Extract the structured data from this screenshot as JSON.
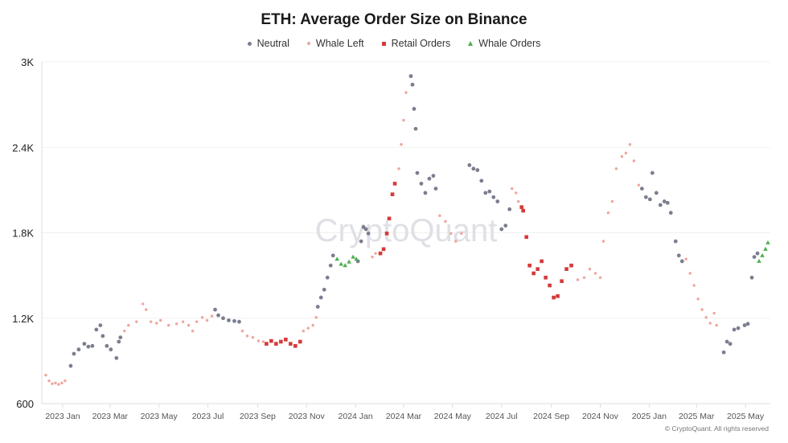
{
  "chart_data": {
    "type": "scatter",
    "title": "ETH: Average Order Size on Binance",
    "xlabel": "",
    "ylabel": "",
    "xlim": [
      "2022-12-06",
      "2025-06-01"
    ],
    "ylim": [
      600,
      3000
    ],
    "grid": true,
    "legend_placement": "top-center",
    "y_ticks": [
      600,
      1200,
      1800,
      2400,
      3000
    ],
    "y_tick_labels": [
      "600",
      "1.2K",
      "1.8K",
      "2.4K",
      "3K"
    ],
    "x_ticks": [
      "2023-01-01",
      "2023-03-01",
      "2023-05-01",
      "2023-07-01",
      "2023-09-01",
      "2023-11-01",
      "2024-01-01",
      "2024-03-01",
      "2024-05-01",
      "2024-07-01",
      "2024-09-01",
      "2024-11-01",
      "2025-01-01",
      "2025-03-01",
      "2025-05-01"
    ],
    "x_tick_labels": [
      "2023 Jan",
      "2023 Mar",
      "2023 May",
      "2023 Jul",
      "2023 Sep",
      "2023 Nov",
      "2024 Jan",
      "2024 Mar",
      "2024 May",
      "2024 Jul",
      "2024 Sep",
      "2024 Nov",
      "2025 Jan",
      "2025 Mar",
      "2025 May"
    ],
    "watermark": "CryptoQuant",
    "series": [
      {
        "name": "Neutral",
        "marker": "circle",
        "color": "#7b7e8e",
        "points": [
          [
            "2023-01-11",
            865
          ],
          [
            "2023-01-15",
            950
          ],
          [
            "2023-01-21",
            980
          ],
          [
            "2023-01-28",
            1020
          ],
          [
            "2023-02-02",
            1000
          ],
          [
            "2023-02-07",
            1005
          ],
          [
            "2023-02-12",
            1120
          ],
          [
            "2023-02-17",
            1150
          ],
          [
            "2023-02-20",
            1075
          ],
          [
            "2023-02-25",
            1005
          ],
          [
            "2023-03-02",
            980
          ],
          [
            "2023-03-09",
            920
          ],
          [
            "2023-03-12",
            1035
          ],
          [
            "2023-03-14",
            1065
          ],
          [
            "2023-07-10",
            1260
          ],
          [
            "2023-07-14",
            1220
          ],
          [
            "2023-07-20",
            1200
          ],
          [
            "2023-07-27",
            1185
          ],
          [
            "2023-08-03",
            1180
          ],
          [
            "2023-08-09",
            1175
          ],
          [
            "2023-11-15",
            1280
          ],
          [
            "2023-11-19",
            1345
          ],
          [
            "2023-11-23",
            1400
          ],
          [
            "2023-11-27",
            1485
          ],
          [
            "2023-12-01",
            1570
          ],
          [
            "2023-12-04",
            1640
          ],
          [
            "2024-01-04",
            1600
          ],
          [
            "2024-01-08",
            1740
          ],
          [
            "2024-01-11",
            1840
          ],
          [
            "2024-01-14",
            1825
          ],
          [
            "2024-01-17",
            1795
          ],
          [
            "2024-03-10",
            2900
          ],
          [
            "2024-03-12",
            2840
          ],
          [
            "2024-03-14",
            2670
          ],
          [
            "2024-03-16",
            2530
          ],
          [
            "2024-03-18",
            2220
          ],
          [
            "2024-03-23",
            2145
          ],
          [
            "2024-03-28",
            2080
          ],
          [
            "2024-04-02",
            2180
          ],
          [
            "2024-04-07",
            2200
          ],
          [
            "2024-04-10",
            2110
          ],
          [
            "2024-05-22",
            2275
          ],
          [
            "2024-05-27",
            2250
          ],
          [
            "2024-06-01",
            2240
          ],
          [
            "2024-06-06",
            2165
          ],
          [
            "2024-06-11",
            2080
          ],
          [
            "2024-06-16",
            2090
          ],
          [
            "2024-06-21",
            2050
          ],
          [
            "2024-06-26",
            2020
          ],
          [
            "2024-07-01",
            1825
          ],
          [
            "2024-07-06",
            1850
          ],
          [
            "2024-07-11",
            1965
          ],
          [
            "2024-12-23",
            2110
          ],
          [
            "2024-12-28",
            2050
          ],
          [
            "2025-01-02",
            2035
          ],
          [
            "2025-01-05",
            2220
          ],
          [
            "2025-01-10",
            2080
          ],
          [
            "2025-01-15",
            1995
          ],
          [
            "2025-01-20",
            2020
          ],
          [
            "2025-01-24",
            2010
          ],
          [
            "2025-01-28",
            1940
          ],
          [
            "2025-02-03",
            1740
          ],
          [
            "2025-02-07",
            1640
          ],
          [
            "2025-02-11",
            1600
          ],
          [
            "2025-04-04",
            960
          ],
          [
            "2025-04-08",
            1035
          ],
          [
            "2025-04-12",
            1020
          ],
          [
            "2025-04-17",
            1120
          ],
          [
            "2025-04-22",
            1130
          ],
          [
            "2025-04-30",
            1150
          ],
          [
            "2025-05-04",
            1160
          ],
          [
            "2025-05-09",
            1485
          ],
          [
            "2025-05-12",
            1630
          ],
          [
            "2025-05-16",
            1655
          ]
        ]
      },
      {
        "name": "Whale Left",
        "marker": "circle-small",
        "color": "#eea59c",
        "points": [
          [
            "2022-12-11",
            800
          ],
          [
            "2022-12-15",
            760
          ],
          [
            "2022-12-19",
            740
          ],
          [
            "2022-12-23",
            745
          ],
          [
            "2022-12-27",
            735
          ],
          [
            "2022-12-31",
            745
          ],
          [
            "2023-01-04",
            760
          ],
          [
            "2023-03-19",
            1110
          ],
          [
            "2023-03-24",
            1150
          ],
          [
            "2023-04-03",
            1175
          ],
          [
            "2023-04-11",
            1300
          ],
          [
            "2023-04-15",
            1260
          ],
          [
            "2023-04-21",
            1175
          ],
          [
            "2023-04-28",
            1165
          ],
          [
            "2023-05-03",
            1185
          ],
          [
            "2023-05-13",
            1150
          ],
          [
            "2023-05-23",
            1160
          ],
          [
            "2023-05-31",
            1175
          ],
          [
            "2023-06-07",
            1150
          ],
          [
            "2023-06-12",
            1110
          ],
          [
            "2023-06-17",
            1175
          ],
          [
            "2023-06-24",
            1205
          ],
          [
            "2023-06-30",
            1185
          ],
          [
            "2023-07-06",
            1215
          ],
          [
            "2023-08-13",
            1110
          ],
          [
            "2023-08-19",
            1075
          ],
          [
            "2023-08-26",
            1065
          ],
          [
            "2023-09-02",
            1040
          ],
          [
            "2023-09-08",
            1035
          ],
          [
            "2023-10-28",
            1110
          ],
          [
            "2023-11-03",
            1130
          ],
          [
            "2023-11-09",
            1150
          ],
          [
            "2023-11-13",
            1205
          ],
          [
            "2024-01-22",
            1630
          ],
          [
            "2024-01-26",
            1655
          ],
          [
            "2024-02-24",
            2250
          ],
          [
            "2024-02-27",
            2420
          ],
          [
            "2024-03-01",
            2590
          ],
          [
            "2024-03-04",
            2785
          ],
          [
            "2024-04-15",
            1920
          ],
          [
            "2024-04-22",
            1880
          ],
          [
            "2024-04-29",
            1795
          ],
          [
            "2024-05-05",
            1740
          ],
          [
            "2024-05-12",
            1795
          ],
          [
            "2024-07-14",
            2110
          ],
          [
            "2024-07-19",
            2080
          ],
          [
            "2024-07-22",
            2020
          ],
          [
            "2024-10-04",
            1470
          ],
          [
            "2024-10-12",
            1485
          ],
          [
            "2024-10-19",
            1545
          ],
          [
            "2024-10-26",
            1515
          ],
          [
            "2024-11-01",
            1485
          ],
          [
            "2024-11-05",
            1740
          ],
          [
            "2024-11-11",
            1940
          ],
          [
            "2024-11-16",
            2020
          ],
          [
            "2024-11-21",
            2250
          ],
          [
            "2024-11-28",
            2335
          ],
          [
            "2024-12-03",
            2360
          ],
          [
            "2024-12-08",
            2420
          ],
          [
            "2024-12-13",
            2305
          ],
          [
            "2024-12-19",
            2135
          ],
          [
            "2025-02-16",
            1615
          ],
          [
            "2025-02-21",
            1515
          ],
          [
            "2025-02-26",
            1430
          ],
          [
            "2025-03-03",
            1335
          ],
          [
            "2025-03-08",
            1260
          ],
          [
            "2025-03-13",
            1205
          ],
          [
            "2025-03-18",
            1165
          ],
          [
            "2025-03-23",
            1235
          ],
          [
            "2025-03-26",
            1150
          ]
        ]
      },
      {
        "name": "Retail Orders",
        "marker": "square",
        "color": "#d43a3a",
        "points": [
          [
            "2023-09-12",
            1020
          ],
          [
            "2023-09-18",
            1040
          ],
          [
            "2023-09-24",
            1020
          ],
          [
            "2023-09-30",
            1035
          ],
          [
            "2023-10-06",
            1050
          ],
          [
            "2023-10-12",
            1020
          ],
          [
            "2023-10-18",
            1005
          ],
          [
            "2023-10-24",
            1035
          ],
          [
            "2024-02-01",
            1655
          ],
          [
            "2024-02-05",
            1685
          ],
          [
            "2024-02-09",
            1795
          ],
          [
            "2024-02-12",
            1900
          ],
          [
            "2024-02-16",
            2070
          ],
          [
            "2024-02-19",
            2145
          ],
          [
            "2024-07-26",
            1980
          ],
          [
            "2024-07-28",
            1955
          ],
          [
            "2024-08-01",
            1770
          ],
          [
            "2024-08-05",
            1570
          ],
          [
            "2024-08-10",
            1515
          ],
          [
            "2024-08-15",
            1545
          ],
          [
            "2024-08-20",
            1600
          ],
          [
            "2024-08-25",
            1485
          ],
          [
            "2024-08-30",
            1430
          ],
          [
            "2024-09-04",
            1345
          ],
          [
            "2024-09-09",
            1355
          ],
          [
            "2024-09-14",
            1460
          ],
          [
            "2024-09-20",
            1545
          ],
          [
            "2024-09-26",
            1570
          ]
        ]
      },
      {
        "name": "Whale Orders",
        "marker": "triangle",
        "color": "#4caf50",
        "points": [
          [
            "2023-12-09",
            1615
          ],
          [
            "2023-12-14",
            1580
          ],
          [
            "2023-12-19",
            1570
          ],
          [
            "2023-12-24",
            1595
          ],
          [
            "2023-12-29",
            1630
          ],
          [
            "2024-01-02",
            1615
          ],
          [
            "2025-05-18",
            1600
          ],
          [
            "2025-05-22",
            1640
          ],
          [
            "2025-05-26",
            1685
          ],
          [
            "2025-05-29",
            1730
          ]
        ]
      }
    ]
  },
  "footer": "© CryptoQuant. All rights reserved"
}
